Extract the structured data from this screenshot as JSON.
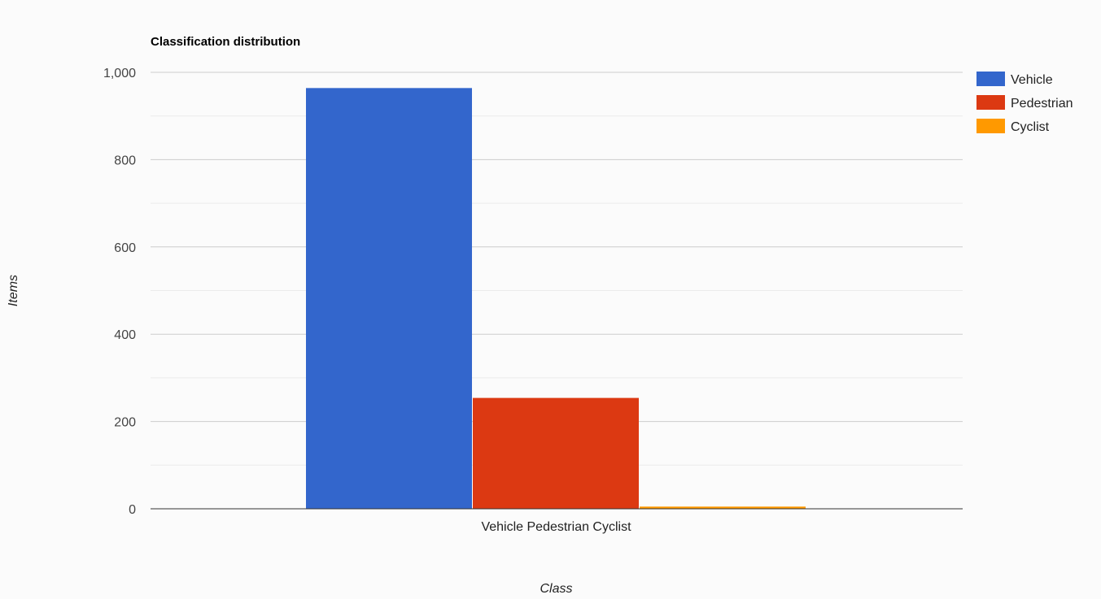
{
  "chart_data": {
    "type": "bar",
    "title": "Classification distribution",
    "xlabel": "Class",
    "ylabel": "Items",
    "categories": [
      "Vehicle Pedestrian Cyclist"
    ],
    "series": [
      {
        "name": "Vehicle",
        "values": [
          964
        ],
        "color": "#3366cc"
      },
      {
        "name": "Pedestrian",
        "values": [
          254
        ],
        "color": "#dc3912"
      },
      {
        "name": "Cyclist",
        "values": [
          5
        ],
        "color": "#ff9900"
      }
    ],
    "ylim": [
      0,
      1000
    ],
    "yticks": [
      "0",
      "200",
      "400",
      "600",
      "800",
      "1,000"
    ],
    "ytick_values": [
      0,
      200,
      400,
      600,
      800,
      1000
    ],
    "grid": true,
    "legend": "right"
  }
}
